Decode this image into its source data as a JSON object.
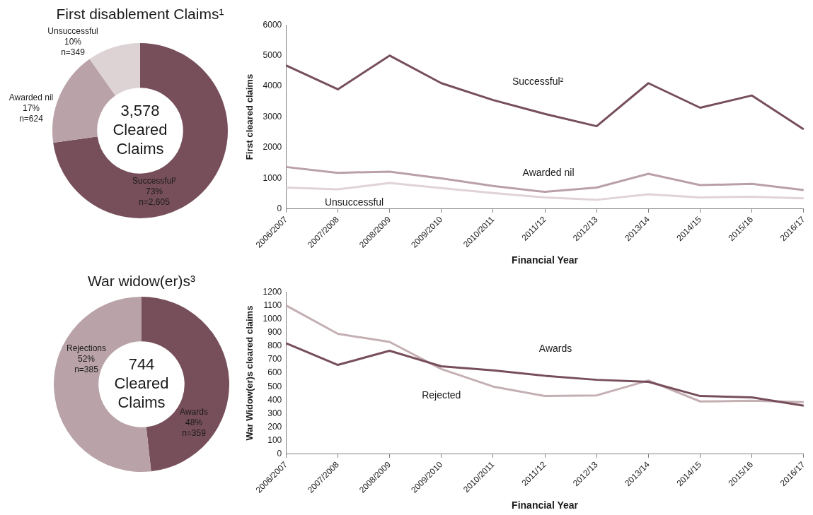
{
  "chart_data": [
    {
      "type": "donut",
      "title": "First disablement  Claims¹",
      "categories": [
        "Successful²",
        "Awarded nil",
        "Unsuccessful"
      ],
      "values": [
        2605,
        624,
        349
      ],
      "colors": [
        "#774f5b",
        "#b9a3a8",
        "#ddd2d4"
      ],
      "value_labels": [
        "73%\nn=2,605",
        "17%\nn=624",
        "10%\nn=349"
      ],
      "annotations": [
        "3,578\nCleared\nClaims"
      ],
      "legend": false
    },
    {
      "type": "line",
      "categories": [
        "2006/2007",
        "2007/2008",
        "2008/2009",
        "2009/2010",
        "2010/2011",
        "2011/12",
        "2012/13",
        "2013/14",
        "2014/15",
        "2015/16",
        "2016/17"
      ],
      "xlabel": "Financial Year",
      "ylabel": "First cleared claims",
      "ylim": [
        0,
        6000
      ],
      "yticks": [
        0,
        1000,
        2000,
        3000,
        4000,
        5000,
        6000
      ],
      "grid": false,
      "legend": false,
      "series": [
        {
          "name": "Successful²",
          "color": "#774f5b",
          "values": [
            4680,
            3900,
            5000,
            4100,
            3550,
            3100,
            2700,
            4100,
            3300,
            3700,
            2600
          ]
        },
        {
          "name": "Awarded nil",
          "color": "#b9a0a6",
          "values": [
            1370,
            1180,
            1220,
            1000,
            750,
            560,
            700,
            1150,
            780,
            820,
            620
          ]
        },
        {
          "name": "Unsuccessful",
          "color": "#e0d3d6",
          "values": [
            700,
            640,
            850,
            680,
            520,
            380,
            300,
            480,
            380,
            400,
            350
          ]
        }
      ]
    },
    {
      "type": "donut",
      "title": "War widow(er)s³",
      "categories": [
        "Awards",
        "Rejections"
      ],
      "values": [
        359,
        385
      ],
      "colors": [
        "#774f5b",
        "#b9a3a8"
      ],
      "value_labels": [
        "48%\nn=359",
        "52%\nn=385"
      ],
      "annotations": [
        "744\nCleared\nClaims"
      ],
      "legend": false
    },
    {
      "type": "line",
      "categories": [
        "2006/2007",
        "2007/2008",
        "2008/2009",
        "2009/2010",
        "2010/2011",
        "2011/12",
        "2012/13",
        "2013/14",
        "2014/15",
        "2015/16",
        "2016/17"
      ],
      "xlabel": "Financial Year",
      "ylabel": "War Widow(er)s cleared claims",
      "ylim": [
        0,
        1200
      ],
      "yticks": [
        0,
        100,
        200,
        300,
        400,
        500,
        600,
        700,
        800,
        900,
        1000,
        1100,
        1200
      ],
      "grid": false,
      "legend": false,
      "series": [
        {
          "name": "Awards",
          "color": "#774f5b",
          "values": [
            820,
            660,
            765,
            650,
            620,
            580,
            550,
            535,
            430,
            420,
            359
          ]
        },
        {
          "name": "Rejected",
          "color": "#c4afb3",
          "values": [
            1100,
            890,
            830,
            630,
            500,
            430,
            435,
            545,
            390,
            395,
            385
          ]
        }
      ]
    }
  ]
}
